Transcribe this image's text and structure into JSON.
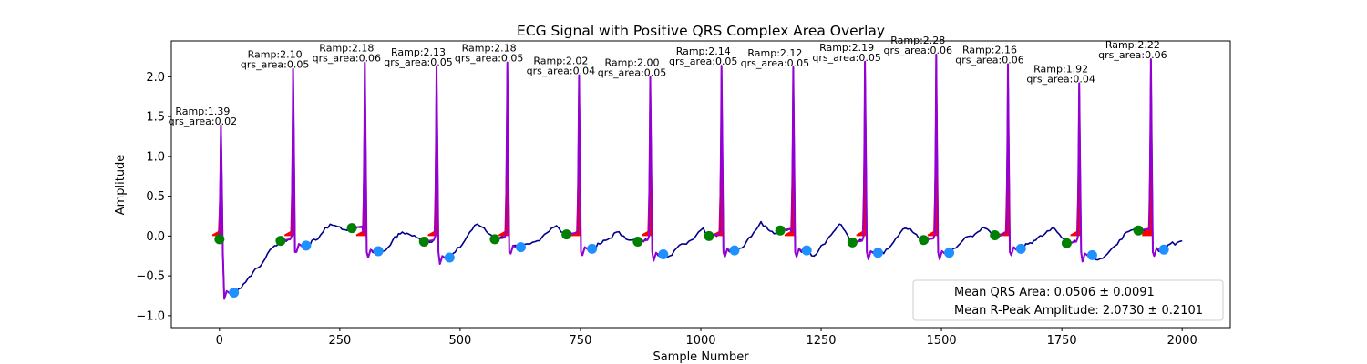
{
  "chart_data": {
    "type": "line",
    "title": "ECG Signal with Positive QRS Complex Area Overlay",
    "xlabel": "Sample Number",
    "ylabel": "Amplitude",
    "xlim": [
      -100,
      2100
    ],
    "ylim": [
      -1.15,
      2.45
    ],
    "x_ticks": [
      0,
      250,
      500,
      750,
      1000,
      1250,
      1500,
      1750,
      2000
    ],
    "y_ticks": [
      -1.0,
      -0.5,
      0.0,
      0.5,
      1.0,
      1.5,
      2.0
    ],
    "x_tick_labels": [
      "0",
      "250",
      "500",
      "750",
      "1000",
      "1250",
      "1500",
      "1750",
      "2000"
    ],
    "y_tick_labels": [
      "−1.0",
      "−0.5",
      "0.0",
      "0.5",
      "1.0",
      "1.5",
      "2.0"
    ],
    "grid": false,
    "colors": {
      "signal": "#00008b",
      "qrs_segment": "#9400d3",
      "qrs_fill": "#ff0000",
      "onset_marker": "#008000",
      "offset_marker": "#1e90ff"
    },
    "beats": [
      {
        "r": 3,
        "amp": 1.39,
        "area": 0.02,
        "amp_label": "Ramp:1.39",
        "area_label": "qrs_area:0.02",
        "onset": [
          0,
          -0.04
        ],
        "offset": [
          30,
          -0.71
        ],
        "base": -0.03
      },
      {
        "r": 153,
        "amp": 2.1,
        "area": 0.05,
        "amp_label": "Ramp:2.10",
        "area_label": "qrs_area:0.05",
        "onset": [
          127,
          -0.06
        ],
        "offset": [
          180,
          -0.12
        ],
        "base": -0.05
      },
      {
        "r": 302,
        "amp": 2.18,
        "area": 0.06,
        "amp_label": "Ramp:2.18",
        "area_label": "qrs_area:0.06",
        "onset": [
          275,
          0.1
        ],
        "offset": [
          330,
          -0.19
        ],
        "base": 0.0
      },
      {
        "r": 451,
        "amp": 2.13,
        "area": 0.05,
        "amp_label": "Ramp:2.13",
        "area_label": "qrs_area:0.05",
        "onset": [
          425,
          -0.07
        ],
        "offset": [
          478,
          -0.27
        ],
        "base": -0.06
      },
      {
        "r": 598,
        "amp": 2.18,
        "area": 0.05,
        "amp_label": "Ramp:2.18",
        "area_label": "qrs_area:0.05",
        "onset": [
          572,
          -0.04
        ],
        "offset": [
          626,
          -0.14
        ],
        "base": -0.03
      },
      {
        "r": 747,
        "amp": 2.02,
        "area": 0.04,
        "amp_label": "Ramp:2.02",
        "area_label": "qrs_area:0.04",
        "onset": [
          721,
          0.02
        ],
        "offset": [
          774,
          -0.16
        ],
        "base": 0.0
      },
      {
        "r": 895,
        "amp": 2.0,
        "area": 0.05,
        "amp_label": "Ramp:2.00",
        "area_label": "qrs_area:0.05",
        "onset": [
          869,
          -0.07
        ],
        "offset": [
          922,
          -0.23
        ],
        "base": -0.06
      },
      {
        "r": 1043,
        "amp": 2.14,
        "area": 0.05,
        "amp_label": "Ramp:2.14",
        "area_label": "qrs_area:0.05",
        "onset": [
          1017,
          0.0
        ],
        "offset": [
          1070,
          -0.18
        ],
        "base": 0.0
      },
      {
        "r": 1192,
        "amp": 2.12,
        "area": 0.05,
        "amp_label": "Ramp:2.12",
        "area_label": "qrs_area:0.05",
        "onset": [
          1165,
          0.07
        ],
        "offset": [
          1220,
          -0.18
        ],
        "base": 0.0
      },
      {
        "r": 1341,
        "amp": 2.19,
        "area": 0.05,
        "amp_label": "Ramp:2.19",
        "area_label": "qrs_area:0.05",
        "onset": [
          1315,
          -0.08
        ],
        "offset": [
          1368,
          -0.21
        ],
        "base": -0.06
      },
      {
        "r": 1489,
        "amp": 2.28,
        "area": 0.06,
        "amp_label": "Ramp:2.28",
        "area_label": "qrs_area:0.06",
        "onset": [
          1463,
          -0.05
        ],
        "offset": [
          1516,
          -0.21
        ],
        "base": -0.03
      },
      {
        "r": 1638,
        "amp": 2.16,
        "area": 0.06,
        "amp_label": "Ramp:2.16",
        "area_label": "qrs_area:0.06",
        "onset": [
          1611,
          0.01
        ],
        "offset": [
          1665,
          -0.16
        ],
        "base": 0.0
      },
      {
        "r": 1786,
        "amp": 1.92,
        "area": 0.04,
        "amp_label": "Ramp:1.92",
        "area_label": "qrs_area:0.04",
        "onset": [
          1760,
          -0.09
        ],
        "offset": [
          1813,
          -0.24
        ],
        "base": -0.07
      },
      {
        "r": 1935,
        "amp": 2.22,
        "area": 0.06,
        "amp_label": "Ramp:2.22",
        "area_label": "qrs_area:0.06",
        "onset": [
          1909,
          0.07
        ],
        "offset": [
          1962,
          -0.17
        ],
        "base": 0.03
      }
    ],
    "baseline": [
      [
        0,
        -0.03
      ],
      [
        10,
        -0.55
      ],
      [
        18,
        -0.85
      ],
      [
        24,
        -0.95
      ],
      [
        35,
        -0.7
      ],
      [
        50,
        -0.6
      ],
      [
        70,
        -0.45
      ],
      [
        85,
        -0.38
      ],
      [
        100,
        -0.22
      ],
      [
        115,
        -0.12
      ],
      [
        127,
        -0.06
      ],
      [
        180,
        -0.12
      ],
      [
        200,
        -0.05
      ],
      [
        215,
        0.05
      ],
      [
        230,
        0.15
      ],
      [
        245,
        0.12
      ],
      [
        260,
        0.08
      ],
      [
        275,
        0.1
      ],
      [
        330,
        -0.19
      ],
      [
        345,
        -0.18
      ],
      [
        360,
        -0.05
      ],
      [
        380,
        0.05
      ],
      [
        395,
        0.02
      ],
      [
        410,
        -0.02
      ],
      [
        425,
        -0.07
      ],
      [
        478,
        -0.27
      ],
      [
        490,
        -0.2
      ],
      [
        505,
        -0.1
      ],
      [
        520,
        0.05
      ],
      [
        535,
        0.15
      ],
      [
        550,
        0.1
      ],
      [
        562,
        0.02
      ],
      [
        572,
        -0.04
      ],
      [
        626,
        -0.14
      ],
      [
        645,
        -0.1
      ],
      [
        660,
        -0.06
      ],
      [
        675,
        0.02
      ],
      [
        690,
        0.1
      ],
      [
        700,
        0.13
      ],
      [
        710,
        0.05
      ],
      [
        721,
        0.02
      ],
      [
        774,
        -0.16
      ],
      [
        790,
        -0.1
      ],
      [
        810,
        -0.03
      ],
      [
        825,
        0.05
      ],
      [
        840,
        0.0
      ],
      [
        855,
        -0.05
      ],
      [
        869,
        -0.07
      ],
      [
        922,
        -0.23
      ],
      [
        935,
        -0.25
      ],
      [
        950,
        -0.15
      ],
      [
        965,
        -0.1
      ],
      [
        980,
        -0.05
      ],
      [
        995,
        0.05
      ],
      [
        1005,
        0.1
      ],
      [
        1017,
        0.0
      ],
      [
        1070,
        -0.18
      ],
      [
        1085,
        -0.15
      ],
      [
        1100,
        -0.02
      ],
      [
        1115,
        0.08
      ],
      [
        1125,
        0.18
      ],
      [
        1140,
        0.08
      ],
      [
        1152,
        0.03
      ],
      [
        1165,
        0.07
      ],
      [
        1220,
        -0.18
      ],
      [
        1235,
        -0.25
      ],
      [
        1250,
        -0.12
      ],
      [
        1262,
        -0.05
      ],
      [
        1275,
        0.05
      ],
      [
        1288,
        0.15
      ],
      [
        1300,
        0.06
      ],
      [
        1315,
        -0.08
      ],
      [
        1368,
        -0.21
      ],
      [
        1380,
        -0.22
      ],
      [
        1395,
        -0.12
      ],
      [
        1410,
        0.0
      ],
      [
        1425,
        0.1
      ],
      [
        1440,
        0.05
      ],
      [
        1452,
        -0.02
      ],
      [
        1463,
        -0.05
      ],
      [
        1516,
        -0.21
      ],
      [
        1530,
        -0.15
      ],
      [
        1545,
        -0.05
      ],
      [
        1560,
        0.0
      ],
      [
        1575,
        0.05
      ],
      [
        1590,
        0.1
      ],
      [
        1600,
        0.06
      ],
      [
        1611,
        0.01
      ],
      [
        1665,
        -0.16
      ],
      [
        1680,
        -0.1
      ],
      [
        1700,
        -0.02
      ],
      [
        1715,
        0.03
      ],
      [
        1730,
        0.1
      ],
      [
        1745,
        0.02
      ],
      [
        1760,
        -0.09
      ],
      [
        1813,
        -0.24
      ],
      [
        1825,
        -0.3
      ],
      [
        1840,
        -0.25
      ],
      [
        1855,
        -0.15
      ],
      [
        1870,
        -0.05
      ],
      [
        1885,
        0.05
      ],
      [
        1898,
        0.08
      ],
      [
        1909,
        0.07
      ],
      [
        1962,
        -0.17
      ],
      [
        1975,
        -0.1
      ],
      [
        1990,
        -0.08
      ],
      [
        2000,
        -0.06
      ]
    ],
    "legend": {
      "placement": "lower right",
      "entries": [
        "Mean QRS Area: 0.0506 ± 0.0091",
        "Mean R-Peak Amplitude: 2.0730 ± 0.2101"
      ]
    }
  }
}
